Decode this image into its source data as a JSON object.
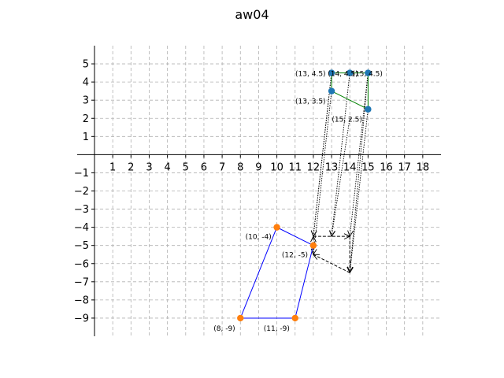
{
  "title": "aw04",
  "chart_data": {
    "type": "scatter",
    "title": "aw04",
    "xlabel": "",
    "ylabel": "",
    "xlim": [
      0,
      19
    ],
    "ylim": [
      -10,
      6
    ],
    "x_ticks": [
      1,
      2,
      3,
      4,
      5,
      6,
      7,
      8,
      9,
      10,
      11,
      12,
      13,
      14,
      15,
      16,
      17,
      18
    ],
    "y_ticks": [
      -9,
      -8,
      -7,
      -6,
      -5,
      -4,
      -3,
      -2,
      -1,
      1,
      2,
      3,
      4,
      5
    ],
    "grid": true,
    "grid_style": "dashed",
    "axes_through_origin": true,
    "series": [
      {
        "color": "#008000",
        "marker_color": "#1f77b4",
        "closed": true,
        "points": [
          {
            "x": 13,
            "y": 4.5,
            "label": "(13, 4.5)"
          },
          {
            "x": 14,
            "y": 4.5,
            "label": "(14, 4.5)"
          },
          {
            "x": 15,
            "y": 4.5,
            "label": "(15, 4.5)"
          },
          {
            "x": 15,
            "y": 2.5,
            "label": "(15, 2.5)"
          },
          {
            "x": 13,
            "y": 3.5,
            "label": "(13, 3.5)"
          }
        ]
      },
      {
        "color": "#0000ff",
        "marker_color": "#ff7f0e",
        "closed": true,
        "points": [
          {
            "x": 10,
            "y": -4,
            "label": "(10, -4)"
          },
          {
            "x": 12,
            "y": -5,
            "label": "(12, -5)"
          },
          {
            "x": 11,
            "y": -9,
            "label": "(11, -9)"
          },
          {
            "x": 8,
            "y": -9,
            "label": "(8, -9)"
          }
        ]
      }
    ],
    "dashed_polygon": {
      "color": "#000000",
      "points": [
        {
          "x": 12,
          "y": -4.5
        },
        {
          "x": 14,
          "y": -4.5
        },
        {
          "x": 14,
          "y": -6.5
        },
        {
          "x": 12,
          "y": -5.5
        }
      ]
    },
    "arrows": [
      {
        "from": [
          13,
          4.5
        ],
        "to": [
          12,
          -4.5
        ]
      },
      {
        "from": [
          14,
          4.5
        ],
        "to": [
          13,
          -4.5
        ]
      },
      {
        "from": [
          15,
          4.5
        ],
        "to": [
          14,
          -4.5
        ]
      },
      {
        "from": [
          15,
          2.5
        ],
        "to": [
          14,
          -6.5
        ]
      },
      {
        "from": [
          13,
          3.5
        ],
        "to": [
          12,
          -5.5
        ]
      },
      {
        "from": [
          13,
          4.5
        ],
        "to": [
          12,
          -4.5
        ]
      },
      {
        "from": [
          14,
          2
        ],
        "to": [
          13,
          -4.5
        ]
      },
      {
        "from": [
          15,
          4.5
        ],
        "to": [
          14,
          -6.5
        ]
      }
    ]
  }
}
